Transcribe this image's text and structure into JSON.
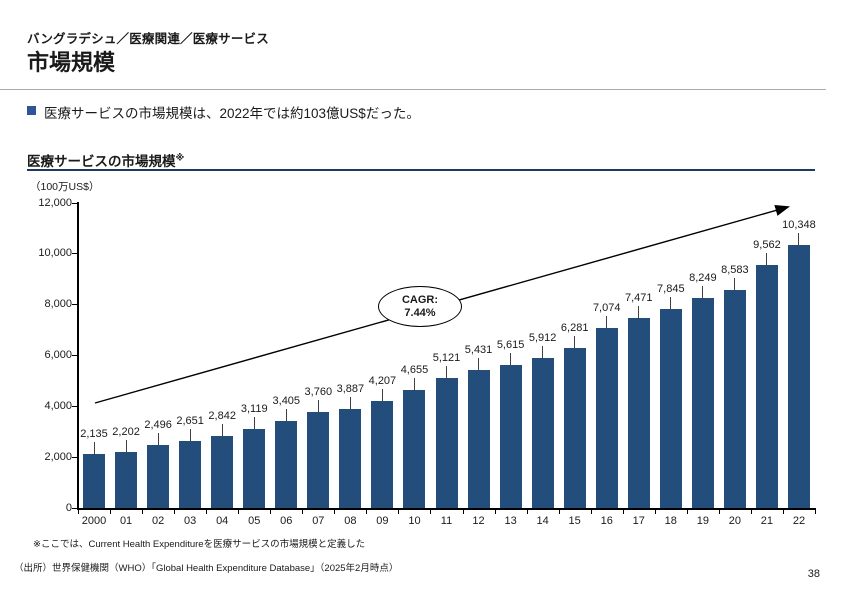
{
  "header": {
    "breadcrumb": "バングラデシュ／医療関連／医療サービス",
    "title": "市場規模"
  },
  "summary": {
    "text": "医療サービスの市場規模は、2022年では約103億US$だった。"
  },
  "chart": {
    "title": "医療サービスの市場規模",
    "title_note_marker": "※",
    "unit": "（100万US$）",
    "cagr_label": "CAGR:",
    "cagr_value": "7.44%"
  },
  "chart_data": {
    "type": "bar",
    "title": "医療サービスの市場規模※",
    "ylabel": "100万US$",
    "categories": [
      "2000",
      "01",
      "02",
      "03",
      "04",
      "05",
      "06",
      "07",
      "08",
      "09",
      "10",
      "11",
      "12",
      "13",
      "14",
      "15",
      "16",
      "17",
      "18",
      "19",
      "20",
      "21",
      "22"
    ],
    "values": [
      2135,
      2202,
      2496,
      2651,
      2842,
      3119,
      3405,
      3760,
      3887,
      4207,
      4655,
      5121,
      5431,
      5615,
      5912,
      6281,
      7074,
      7471,
      7845,
      8249,
      8583,
      9562,
      10348
    ],
    "value_labels": [
      "2,135",
      "2,202",
      "2,496",
      "2,651",
      "2,842",
      "3,119",
      "3,405",
      "3,760",
      "3,887",
      "4,207",
      "4,655",
      "5,121",
      "5,431",
      "5,615",
      "5,912",
      "6,281",
      "7,074",
      "7,471",
      "7,845",
      "8,249",
      "8,583",
      "9,562",
      "10,348"
    ],
    "ylim": [
      0,
      12000
    ],
    "ytick_interval": 2000,
    "ytick_labels": [
      "0",
      "2,000",
      "4,000",
      "6,000",
      "8,000",
      "10,000",
      "12,000"
    ],
    "grid": false,
    "legend": false,
    "annotation": {
      "label": "CAGR:",
      "value": "7.44%"
    }
  },
  "colors": {
    "bar": "#234E7C",
    "bullet": "#2F5597",
    "title_underline": "#1F3864"
  },
  "footnotes": {
    "note": "※ここでは、Current Health Expenditureを医療サービスの市場規模と定義した",
    "source": "（出所）世界保健機関（WHO）「Global Health Expenditure Database」（2025年2月時点）"
  },
  "footer": {
    "page_number": "38"
  }
}
